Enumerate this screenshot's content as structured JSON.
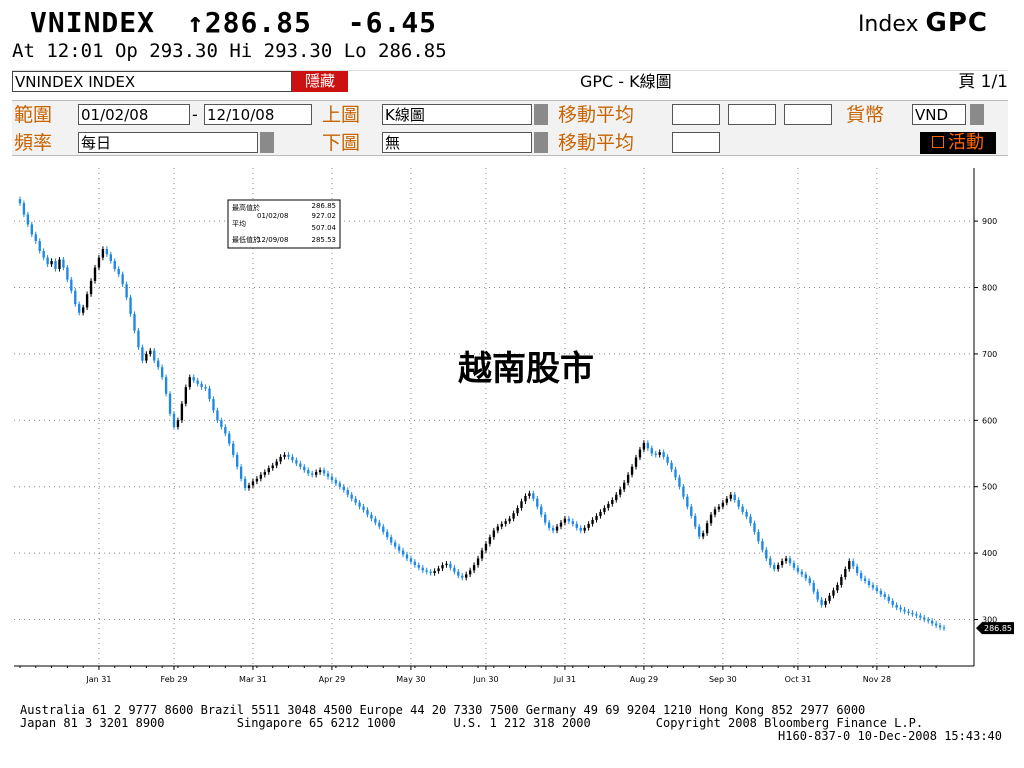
{
  "header": {
    "ticker": "VNINDEX",
    "arrow": "↑",
    "last": "286.85",
    "change": "-6.45",
    "index_label": "Index",
    "source": "GPC",
    "quote_line": "At 12:01  Op 293.30 Hi 293.30 Lo 286.85"
  },
  "toolbar": {
    "security_field": "VNINDEX INDEX",
    "hide_button": "隱藏",
    "screen_title": "GPC - K線圖",
    "page_label": "頁",
    "page_value": "1/1",
    "range_label": "範圍",
    "range_start": "01/02/08",
    "range_sep": "-",
    "range_end": "12/10/08",
    "upper_label": "上圖",
    "upper_value": "K線圖",
    "ma_label_1": "移動平均",
    "currency_label": "貨幣",
    "currency_value": "VND",
    "freq_label": "頻率",
    "freq_value": "每日",
    "lower_label": "下圖",
    "lower_value": "無",
    "ma_label_2": "移動平均",
    "active_button": "活動"
  },
  "chart_data": {
    "type": "line",
    "subtype": "candlestick",
    "title": "越南股市",
    "x_tick_labels": [
      "Jan 31",
      "Feb 29",
      "Mar 31",
      "Apr 29",
      "May 30",
      "Jun 30",
      "Jul 31",
      "Aug 29",
      "Sep 30",
      "Oct 31",
      "Nov 28"
    ],
    "y_tick_labels": [
      "900",
      "800",
      "700",
      "600",
      "500",
      "400",
      "300"
    ],
    "ylim": [
      230,
      980
    ],
    "grid": true,
    "last_value_label": "286.85",
    "legend_box": {
      "labels": [
        "最高值於",
        "平均",
        "最低值於"
      ],
      "high_date": "01/02/08",
      "high": "927.02",
      "avg": "507.04",
      "low_date": "12/09/08",
      "low": "285.53",
      "last": "286.85"
    },
    "series": [
      {
        "close": [
          927,
          910,
          895,
          880,
          870,
          855,
          845,
          835,
          840,
          828,
          842,
          830,
          812,
          795,
          775,
          762,
          770,
          790,
          810,
          830,
          845,
          858,
          850,
          840,
          828,
          820,
          805,
          785,
          760,
          735,
          710,
          690,
          700,
          705,
          690,
          680,
          665,
          640,
          610,
          590,
          600,
          625,
          650,
          665,
          660,
          655,
          650,
          648,
          632,
          615,
          600,
          590,
          580,
          565,
          548,
          530,
          512,
          498,
          502,
          508,
          512,
          518,
          522,
          528,
          532,
          538,
          545,
          548,
          545,
          540,
          535,
          530,
          525,
          520,
          518,
          522,
          525,
          520,
          515,
          510,
          505,
          500,
          495,
          488,
          482,
          476,
          470,
          465,
          458,
          452,
          446,
          440,
          432,
          424,
          416,
          410,
          404,
          398,
          392,
          387,
          382,
          378,
          374,
          372,
          370,
          373,
          377,
          382,
          384,
          378,
          372,
          366,
          363,
          368,
          374,
          382,
          392,
          404,
          414,
          424,
          434,
          440,
          444,
          448,
          452,
          460,
          468,
          478,
          486,
          490,
          482,
          470,
          458,
          446,
          438,
          434,
          440,
          446,
          452,
          448,
          444,
          438,
          434,
          438,
          444,
          450,
          456,
          462,
          468,
          474,
          480,
          488,
          496,
          506,
          518,
          530,
          544,
          556,
          566,
          558,
          550,
          548,
          552,
          545,
          536,
          526,
          514,
          500,
          485,
          470,
          456,
          440,
          425,
          430,
          445,
          458,
          466,
          470,
          476,
          482,
          488,
          480,
          470,
          462,
          455,
          445,
          432,
          418,
          405,
          392,
          382,
          376,
          382,
          388,
          392,
          385,
          378,
          372,
          368,
          362,
          355,
          342,
          330,
          322,
          328,
          336,
          344,
          352,
          364,
          376,
          388,
          380,
          370,
          362,
          358,
          352,
          348,
          343,
          338,
          334,
          328,
          322,
          318,
          315,
          312,
          310,
          308,
          306,
          303,
          300,
          298,
          294,
          291,
          288,
          287
        ]
      }
    ]
  },
  "footer": {
    "line1": "Australia 61 2 9777 8600 Brazil 5511 3048 4500 Europe 44 20 7330 7500 Germany 49 69 9204 1210 Hong Kong 852 2977 6000",
    "line2": "Japan 81 3 3201 8900          Singapore 65 6212 1000        U.S. 1 212 318 2000         Copyright 2008 Bloomberg Finance L.P.",
    "line3": "H160-837-0 10-Dec-2008 15:43:40"
  },
  "colors": {
    "up": "#000000",
    "down": "#1e88e5",
    "hide_button_bg": "#cc1111",
    "active_button_bg": "#000000",
    "active_button_fg": "#ff6600",
    "label_orange": "#c86400"
  }
}
